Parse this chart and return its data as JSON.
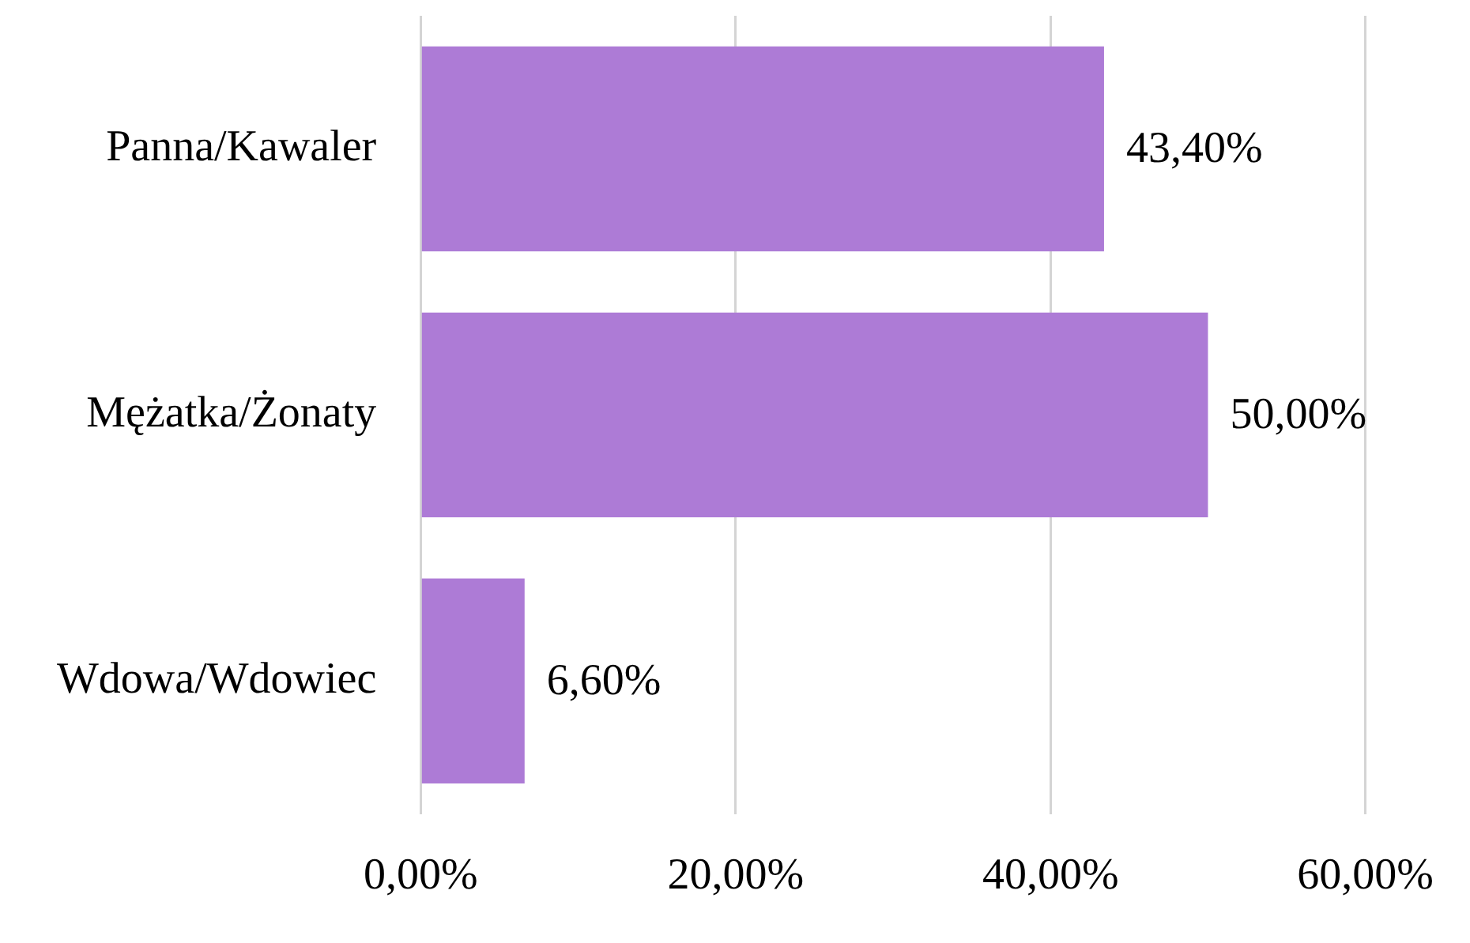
{
  "chart_data": {
    "type": "bar",
    "orientation": "horizontal",
    "categories": [
      "Panna/Kawaler",
      "Mężatka/Żonaty",
      "Wdowa/Wdowiec"
    ],
    "values": [
      43.4,
      50.0,
      6.6
    ],
    "value_labels": [
      "43,40%",
      "50,00%",
      "6,60%"
    ],
    "color": "#ad7bd6",
    "xlim": [
      0,
      60
    ],
    "xticks": [
      {
        "value": 0,
        "label": "0,00%"
      },
      {
        "value": 20,
        "label": "20,00%"
      },
      {
        "value": 40,
        "label": "40,00%"
      },
      {
        "value": 60,
        "label": "60,00%"
      }
    ],
    "grid": "x"
  }
}
